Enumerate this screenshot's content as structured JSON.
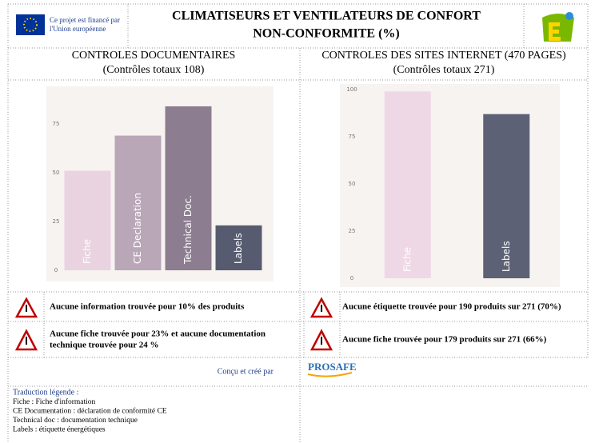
{
  "header": {
    "eu_text": [
      "Ce projet est financé par",
      "l'Union européenne"
    ],
    "title": [
      "CLIMATISEURS ET VENTILATEURS DE CONFORT",
      "NON-CONFORMITE (%)"
    ]
  },
  "sections": [
    {
      "title": "CONTROLES DOCUMENTAIRES",
      "subtitle": "(Contrôles totaux 108)"
    },
    {
      "title": "CONTROLES DES SITES INTERNET (470 PAGES)",
      "subtitle": "(Contrôles totaux 271)"
    }
  ],
  "chart_data": [
    {
      "type": "bar",
      "categories": [
        "Fiche",
        "CE Declaration",
        "Technical Doc.",
        "Labels"
      ],
      "values": [
        51,
        69,
        84,
        23
      ],
      "colors": [
        "#e9d3e0",
        "#b9a6b7",
        "#8c7d90",
        "#575b70"
      ],
      "ylim": [
        0,
        93
      ],
      "yticks": [
        0,
        25,
        50,
        75
      ]
    },
    {
      "type": "bar",
      "categories": [
        "Fiche",
        "Labels"
      ],
      "values": [
        99,
        87
      ],
      "colors": [
        "#efd8e5",
        "#5c6176"
      ],
      "ylim": [
        0,
        100
      ],
      "yticks": [
        0,
        25,
        50,
        75,
        100
      ]
    }
  ],
  "warnings": [
    [
      [
        "Aucune information trouvée pour 10% des produits"
      ],
      [
        "Aucune fiche trouvée pour 23% et aucune documentation",
        "technique trouvée pour 24 %"
      ]
    ],
    [
      [
        "Aucune étiquette trouvée pour 190 produits sur 271 (70%)"
      ],
      [
        "Aucune fiche trouvée pour 179 produits sur 271 (66%)"
      ]
    ]
  ],
  "credit": "Conçu et créé par",
  "prosafe": "PROSAFE",
  "legend": {
    "title": "Traduction légende :",
    "lines": [
      "Fiche : Fiche d'information",
      "CE Documentation : déclaration de conformité CE",
      "Technical doc : documentation technique",
      "Labels : étiquette énergétiques"
    ]
  }
}
